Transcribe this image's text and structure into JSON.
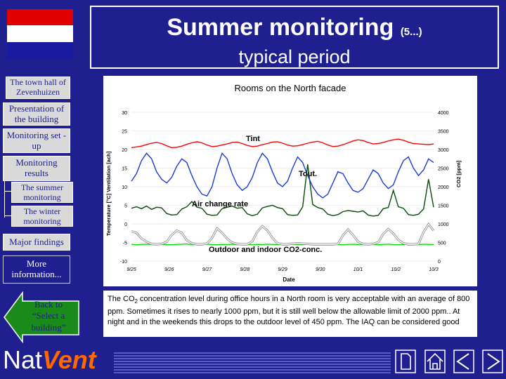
{
  "colors": {
    "bg": "#1f1f8f",
    "flag_red": "#e00000",
    "flag_white": "#ffffff",
    "flag_blue": "#1a1aa0",
    "tint": "#ff0000",
    "tout": "#1a3cd6",
    "air": "#0a4a0a",
    "co2_in": "#ffffff",
    "co2_out": "#00e000"
  },
  "header": {
    "title": "Summer monitoring",
    "series": "(5...)",
    "subtitle": "typical period"
  },
  "nav": {
    "town_hall": "The town hall of Zevenhuizen",
    "presentation": "Presentation of the building",
    "monitoring_setup": "Monitoring set -up",
    "monitoring_results": "Monitoring results",
    "summer": "The summer monitoring",
    "winter": "The winter monitoring",
    "major": "Major findings",
    "more": "More information...",
    "back": "Back to “Select a building”"
  },
  "logo": {
    "part1": "Nat",
    "part2": "Vent"
  },
  "chart_data": {
    "type": "line",
    "title": "Rooms on the North facade",
    "xlabel": "Date",
    "ylabel_left": "Temperature [°C] Ventilation [ach]",
    "ylabel_right": "CO2 [ppm]",
    "x_ticks": [
      "9/25",
      "9/26",
      "9/27",
      "9/28",
      "9/29",
      "9/30",
      "10/1",
      "10/2",
      "10/3"
    ],
    "y_left_ticks": [
      "30",
      "25",
      "20",
      "15",
      "10",
      "5",
      "0",
      "-5",
      "-10"
    ],
    "y_left_range": [
      -10,
      30
    ],
    "y_right_ticks": [
      "4000",
      "3500",
      "3000",
      "2500",
      "2000",
      "1500",
      "1000",
      "500",
      "0"
    ],
    "y_right_range": [
      0,
      4000
    ],
    "annotations": {
      "tint": "Tint",
      "tout": "Tout.",
      "air": "Air change rate",
      "co2": "Outdoor and indoor CO2-conc."
    },
    "series": [
      {
        "name": "Tint",
        "axis": "left",
        "values": [
          20.5,
          20.7,
          20.9,
          21.3,
          21.7,
          21.9,
          21.6,
          21.0,
          20.5,
          20.6,
          20.9,
          21.4,
          21.8,
          22.1,
          21.8,
          21.2,
          20.8,
          20.9,
          21.2,
          21.5,
          21.9,
          22.0,
          21.6,
          21.1,
          20.8,
          20.9,
          21.3,
          21.6,
          22.0,
          22.1,
          21.7,
          21.2,
          20.9,
          21.0,
          21.3,
          21.7,
          22.0,
          22.2,
          21.8,
          21.2,
          20.8,
          20.9,
          21.3,
          21.8,
          22.3,
          22.6,
          22.4,
          21.9,
          21.5,
          21.6,
          21.9,
          22.3,
          22.6,
          22.8,
          22.5,
          22.0,
          21.6,
          21.5,
          21.4,
          21.3,
          21.5
        ]
      },
      {
        "name": "Tout.",
        "axis": "left",
        "values": [
          11.5,
          13.5,
          17,
          19,
          17.5,
          14,
          12,
          11,
          12.5,
          15.5,
          17.5,
          16.5,
          13,
          10,
          8,
          7.5,
          10,
          15,
          19,
          17.5,
          13.5,
          10.5,
          9,
          10,
          12.5,
          16.5,
          19,
          17.5,
          14,
          11,
          10,
          11.5,
          15,
          18,
          16.5,
          13,
          10,
          8,
          7,
          8,
          11,
          14,
          13.5,
          11,
          9,
          8.5,
          9.5,
          12,
          14.5,
          13.5,
          11,
          9.5,
          10.5,
          14,
          17,
          18,
          15,
          13,
          14.5,
          17.5,
          16.5
        ]
      },
      {
        "name": "Air change rate",
        "axis": "left",
        "values": [
          4.2,
          4.6,
          4.1,
          4.8,
          3.9,
          4.5,
          4.3,
          2.8,
          2.4,
          2.5,
          4.0,
          4.6,
          6.0,
          4.5,
          4.2,
          2.6,
          2.3,
          2.4,
          4.1,
          4.5,
          4.8,
          4.2,
          4.4,
          2.7,
          2.2,
          2.6,
          4.3,
          4.7,
          5.0,
          4.4,
          4.1,
          2.5,
          2.3,
          2.4,
          4.6,
          16.0,
          5.2,
          4.4,
          4.0,
          2.6,
          2.2,
          2.5,
          3.3,
          3.6,
          3.4,
          3.2,
          3.5,
          2.4,
          2.1,
          2.3,
          4.1,
          4.4,
          9.0,
          4.6,
          4.2,
          2.5,
          2.3,
          2.6,
          4.0,
          12.0,
          4.5
        ]
      },
      {
        "name": "CO2 indoor",
        "axis": "right",
        "values": [
          800,
          760,
          610,
          520,
          460,
          450,
          460,
          520,
          700,
          820,
          760,
          560,
          480,
          450,
          450,
          470,
          620,
          880,
          760,
          600,
          500,
          460,
          450,
          450,
          530,
          790,
          940,
          820,
          620,
          480,
          450,
          450,
          470,
          480,
          470,
          460,
          450,
          450,
          450,
          450,
          450,
          460,
          690,
          850,
          700,
          520,
          460,
          450,
          460,
          510,
          730,
          860,
          740,
          570,
          480,
          450,
          450,
          460,
          780,
          990,
          820
        ]
      },
      {
        "name": "CO2 outdoor",
        "axis": "right",
        "values": [
          450,
          440,
          450,
          455,
          445,
          440,
          450,
          445,
          440,
          450,
          455,
          460,
          440,
          445,
          450,
          455,
          445,
          440,
          450,
          445,
          455,
          440,
          450,
          445,
          440,
          450,
          445,
          455,
          450,
          440,
          445,
          450,
          455,
          445,
          440,
          450,
          445,
          450,
          440,
          455,
          450,
          445,
          440,
          450,
          455,
          445,
          440,
          450,
          445,
          440,
          450,
          455,
          445,
          440,
          450,
          445,
          450,
          440,
          455,
          450,
          445
        ]
      }
    ]
  },
  "caption": {
    "part1": "The CO",
    "sub": "2",
    "part2": " concentration level during office hours in a North room is very acceptable with an average of 800 ppm. Sometimes it rises to nearly 1000 ppm, but it is still well below the allowable limit of 2000 ppm.. At night and in the weekends this drops to the outdoor level of 450 ppm. The IAQ can be considered good"
  },
  "toolbar_icons": [
    "document-icon",
    "home-icon",
    "previous-icon",
    "next-icon"
  ]
}
